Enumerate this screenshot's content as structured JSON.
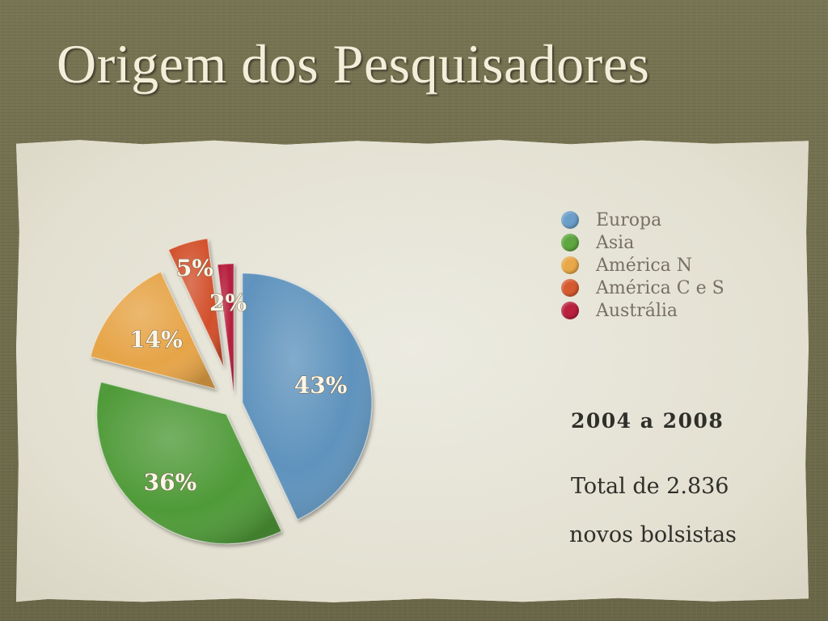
{
  "slide": {
    "title": "Origem dos Pesquisadores"
  },
  "chart_data": {
    "type": "pie",
    "title": "",
    "slices": [
      {
        "name": "Europa",
        "value": 43,
        "label": "43%",
        "color": "#5f93bd"
      },
      {
        "name": "Asia",
        "value": 36,
        "label": "36%",
        "color": "#4f9a37"
      },
      {
        "name": "América N",
        "value": 14,
        "label": "14%",
        "color": "#e6a447"
      },
      {
        "name": "América C e S",
        "value": 5,
        "label": "5%",
        "color": "#d24f2b"
      },
      {
        "name": "Austrália",
        "value": 2,
        "label": "2%",
        "color": "#b51f3a"
      }
    ],
    "exploded": true,
    "legend_position": "right"
  },
  "legend": {
    "items": [
      {
        "label": "Europa",
        "color": "#6b9ec8"
      },
      {
        "label": "Asia",
        "color": "#5ea640"
      },
      {
        "label": "América N",
        "color": "#e8a848"
      },
      {
        "label": "América C e S",
        "color": "#d55a30"
      },
      {
        "label": "Austrália",
        "color": "#b8203e"
      }
    ]
  },
  "info": {
    "period": "2004 a 2008",
    "total_line1": "Total de 2.836",
    "total_line2": "novos bolsistas"
  }
}
